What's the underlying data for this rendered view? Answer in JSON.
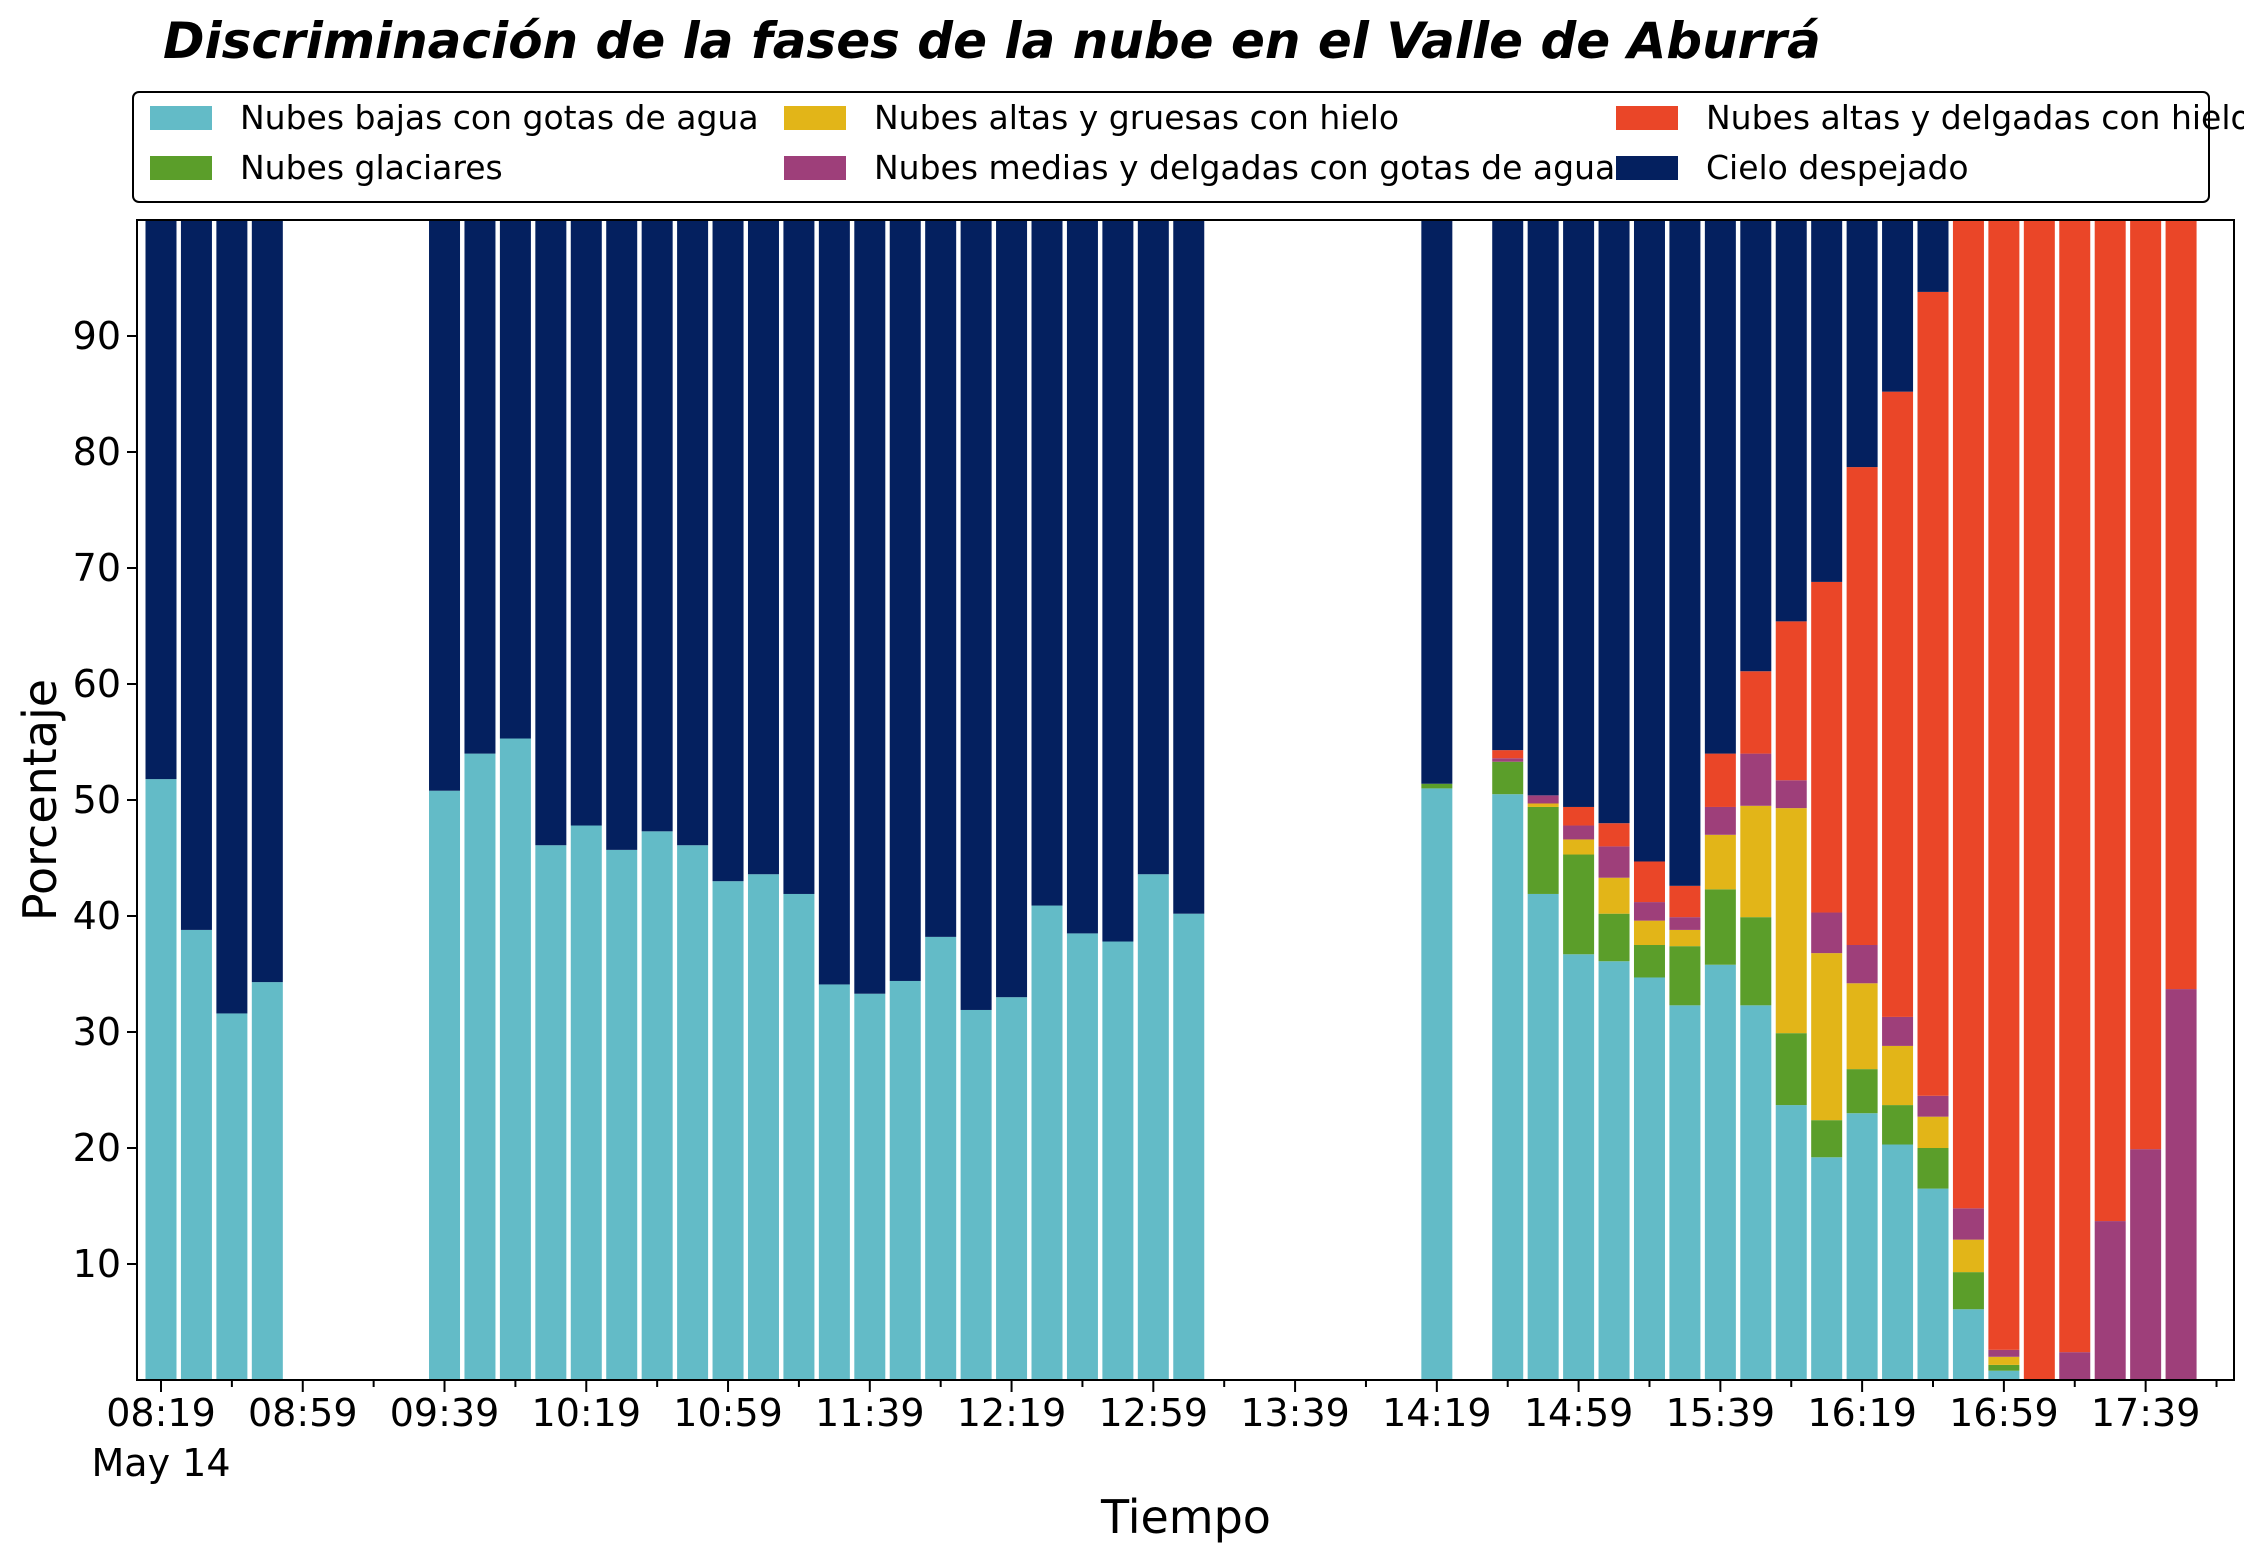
{
  "chart_data": {
    "type": "bar",
    "stacked": true,
    "title": "Discriminación de la fases de la nube en el Valle de Aburrá",
    "xlabel": "Tiempo",
    "ylabel": "Porcentaje",
    "ylim": [
      0,
      100
    ],
    "yticks": [
      10,
      20,
      30,
      40,
      50,
      60,
      70,
      80,
      90
    ],
    "xticks": [
      "08:19",
      "08:59",
      "09:39",
      "10:19",
      "10:59",
      "11:39",
      "12:19",
      "12:59",
      "13:39",
      "14:19",
      "14:59",
      "15:39",
      "16:19",
      "16:59",
      "17:39"
    ],
    "x_date_label": "May 14",
    "grid": false,
    "legend_position": "top",
    "categories": [
      "08:19",
      "08:29",
      "08:39",
      "08:49",
      "08:59",
      "09:09",
      "09:19",
      "09:29",
      "09:39",
      "09:49",
      "09:59",
      "10:09",
      "10:19",
      "10:29",
      "10:39",
      "10:49",
      "10:59",
      "11:09",
      "11:19",
      "11:29",
      "11:39",
      "11:49",
      "11:59",
      "12:09",
      "12:19",
      "12:29",
      "12:39",
      "12:49",
      "12:59",
      "13:09",
      "13:19",
      "13:29",
      "13:39",
      "13:49",
      "13:59",
      "14:09",
      "14:19",
      "14:29",
      "14:39",
      "14:49",
      "14:59",
      "15:09",
      "15:19",
      "15:29",
      "15:39",
      "15:49",
      "15:59",
      "16:09",
      "16:19",
      "16:29",
      "16:39",
      "16:49",
      "16:59",
      "17:09",
      "17:19",
      "17:29",
      "17:39",
      "17:49"
    ],
    "series": [
      {
        "name": "Nubes bajas con gotas de agua",
        "color": "#63bbc7",
        "values": [
          51.8,
          38.8,
          31.6,
          34.3,
          null,
          null,
          null,
          null,
          50.8,
          54.0,
          55.3,
          46.1,
          47.8,
          45.7,
          47.3,
          46.1,
          43.0,
          43.6,
          41.9,
          34.1,
          33.3,
          34.4,
          38.2,
          31.9,
          33.0,
          40.9,
          38.5,
          37.8,
          43.6,
          40.2,
          null,
          null,
          null,
          null,
          null,
          null,
          51.0,
          null,
          50.5,
          41.9,
          36.7,
          36.1,
          34.7,
          32.3,
          35.8,
          32.3,
          23.7,
          19.2,
          23.0,
          20.3,
          16.5,
          6.1,
          0.8,
          0,
          0,
          0,
          0,
          0
        ]
      },
      {
        "name": "Nubes glaciares",
        "color": "#5b9e2a",
        "values": [
          0,
          0,
          0,
          0,
          null,
          null,
          null,
          null,
          0,
          0,
          0,
          0,
          0,
          0,
          0,
          0,
          0,
          0,
          0,
          0,
          0,
          0,
          0,
          0,
          0,
          0,
          0,
          0,
          0,
          0,
          null,
          null,
          null,
          null,
          null,
          null,
          0.4,
          null,
          2.8,
          7.5,
          8.6,
          4.1,
          2.8,
          5.1,
          6.5,
          7.6,
          6.2,
          3.2,
          3.8,
          3.4,
          3.5,
          3.2,
          0.5,
          0,
          0,
          0,
          0,
          0
        ]
      },
      {
        "name": "Nubes altas y gruesas con hielo",
        "color": "#e2b518",
        "values": [
          0,
          0,
          0,
          0,
          null,
          null,
          null,
          null,
          0,
          0,
          0,
          0,
          0,
          0,
          0,
          0,
          0,
          0,
          0,
          0,
          0,
          0,
          0,
          0,
          0,
          0,
          0,
          0,
          0,
          0,
          null,
          null,
          null,
          null,
          null,
          null,
          0,
          null,
          0,
          0.3,
          1.3,
          3.1,
          2.1,
          1.4,
          4.7,
          9.6,
          19.4,
          14.4,
          7.4,
          5.1,
          2.7,
          2.8,
          0.7,
          0,
          0,
          0,
          0,
          0
        ]
      },
      {
        "name": "Nubes medias y delgadas con gotas de agua",
        "color": "#9e3f7a",
        "values": [
          0,
          0,
          0,
          0,
          null,
          null,
          null,
          null,
          0,
          0,
          0,
          0,
          0,
          0,
          0,
          0,
          0,
          0,
          0,
          0,
          0,
          0,
          0,
          0,
          0,
          0,
          0,
          0,
          0,
          0,
          null,
          null,
          null,
          null,
          null,
          null,
          0,
          null,
          0.3,
          0.7,
          1.2,
          2.7,
          1.6,
          1.1,
          2.4,
          4.5,
          2.4,
          3.5,
          3.3,
          2.5,
          1.8,
          2.7,
          0.6,
          0,
          2.4,
          13.7,
          19.9,
          33.7
        ]
      },
      {
        "name": "Nubes altas y delgadas con hielo",
        "color": "#ea4628",
        "values": [
          0,
          0,
          0,
          0,
          null,
          null,
          null,
          null,
          0,
          0,
          0,
          0,
          0,
          0,
          0,
          0,
          0,
          0,
          0,
          0,
          0,
          0,
          0,
          0,
          0,
          0,
          0,
          0,
          0,
          0,
          null,
          null,
          null,
          null,
          null,
          null,
          0,
          null,
          0.7,
          0,
          1.6,
          2.0,
          3.5,
          2.7,
          4.6,
          7.1,
          13.7,
          28.5,
          41.2,
          53.9,
          69.3,
          85.2,
          97.4,
          100,
          97.6,
          86.3,
          80.1,
          66.3
        ]
      },
      {
        "name": "Cielo despejado",
        "color": "#04205f",
        "values": [
          48.2,
          61.2,
          68.4,
          65.7,
          null,
          null,
          null,
          null,
          49.2,
          46.0,
          44.7,
          53.9,
          52.2,
          54.3,
          52.7,
          53.9,
          57.0,
          56.4,
          58.1,
          65.9,
          66.7,
          65.6,
          61.8,
          68.1,
          67.0,
          59.1,
          61.5,
          62.2,
          56.4,
          59.8,
          null,
          null,
          null,
          null,
          null,
          null,
          48.6,
          null,
          45.7,
          49.6,
          50.6,
          52.0,
          55.3,
          57.4,
          46.0,
          38.9,
          34.6,
          31.2,
          21.3,
          14.8,
          6.2,
          0,
          0,
          0,
          0,
          0,
          0,
          0
        ]
      }
    ]
  }
}
